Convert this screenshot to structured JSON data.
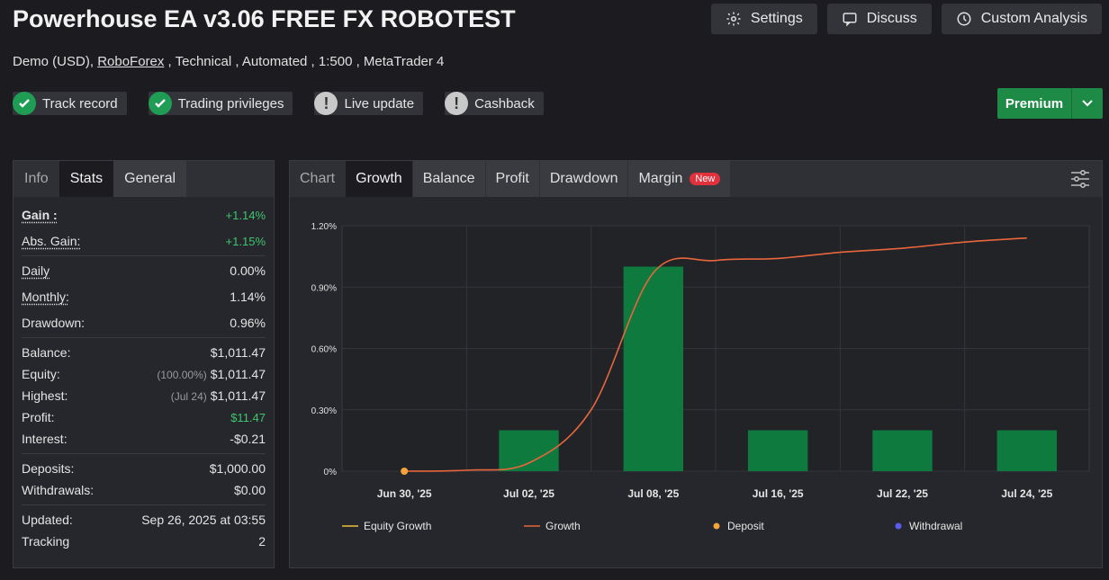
{
  "header": {
    "title": "Powerhouse EA v3.06 FREE FX ROBOTEST",
    "buttons": [
      {
        "label": "Settings",
        "icon": "gear-icon"
      },
      {
        "label": "Discuss",
        "icon": "chat-icon"
      },
      {
        "label": "Custom Analysis",
        "icon": "clock-icon"
      }
    ]
  },
  "subtitle": {
    "pre": "Demo (USD), ",
    "broker": "RoboForex",
    "post": " , Technical , Automated , 1:500 , MetaTrader 4"
  },
  "badges": [
    {
      "label": "Track record",
      "status": "ok"
    },
    {
      "label": "Trading privileges",
      "status": "ok"
    },
    {
      "label": "Live update",
      "status": "warn"
    },
    {
      "label": "Cashback",
      "status": "warn"
    }
  ],
  "premium": {
    "label": "Premium"
  },
  "left_tabs": [
    "Info",
    "Stats",
    "General"
  ],
  "stats": {
    "gain": {
      "label": "Gain :",
      "value": "+1.14%"
    },
    "abs_gain": {
      "label": "Abs. Gain:",
      "value": "+1.15%"
    },
    "daily": {
      "label": "Daily",
      "value": "0.00%"
    },
    "monthly": {
      "label": "Monthly:",
      "value": "1.14%"
    },
    "drawdown": {
      "label": "Drawdown:",
      "value": "0.96%"
    },
    "balance": {
      "label": "Balance:",
      "value": "$1,011.47"
    },
    "equity": {
      "label": "Equity:",
      "pre": "(100.00%)",
      "value": "$1,011.47"
    },
    "highest": {
      "label": "Highest:",
      "pre": "(Jul 24)",
      "value": "$1,011.47"
    },
    "profit": {
      "label": "Profit:",
      "value": "$11.47"
    },
    "interest": {
      "label": "Interest:",
      "value": "-$0.21"
    },
    "deposits": {
      "label": "Deposits:",
      "value": "$1,000.00"
    },
    "withdrawals": {
      "label": "Withdrawals:",
      "value": "$0.00"
    },
    "updated": {
      "label": "Updated:",
      "value": "Sep 26, 2025 at 03:55"
    },
    "tracking": {
      "label": "Tracking",
      "value": "2"
    }
  },
  "chart_tabs": [
    "Chart",
    "Growth",
    "Balance",
    "Profit",
    "Drawdown",
    "Margin"
  ],
  "new_badge": "New",
  "colors": {
    "green": "#3ec46d",
    "bar": "#0e7a3e",
    "growth_line": "#e8663d",
    "equity_line": "#e8c23a",
    "deposit": "#f2a33a",
    "withdrawal": "#5b5bf0"
  },
  "chart_data": {
    "type": "bar",
    "categories": [
      "Jun 30, '25",
      "Jul 02, '25",
      "Jul 08, '25",
      "Jul 16, '25",
      "Jul 22, '25",
      "Jul 24, '25"
    ],
    "bar_values": [
      0,
      0.2,
      1.0,
      0.2,
      0.2,
      0.2
    ],
    "line": {
      "name": "Growth",
      "x": [
        0,
        0.5,
        1,
        1.5,
        2,
        2.5,
        3,
        3.5,
        4,
        4.5,
        5
      ],
      "y": [
        0,
        0.005,
        0.04,
        0.3,
        0.97,
        1.03,
        1.04,
        1.07,
        1.09,
        1.12,
        1.14
      ]
    },
    "deposit_point": {
      "x": 0,
      "y": 0
    },
    "yticks": [
      "0%",
      "0.30%",
      "0.60%",
      "0.90%",
      "1.20%"
    ],
    "ylim": [
      0,
      1.2
    ],
    "legend": [
      "Equity Growth",
      "Growth",
      "Deposit",
      "Withdrawal"
    ],
    "grid": true
  }
}
